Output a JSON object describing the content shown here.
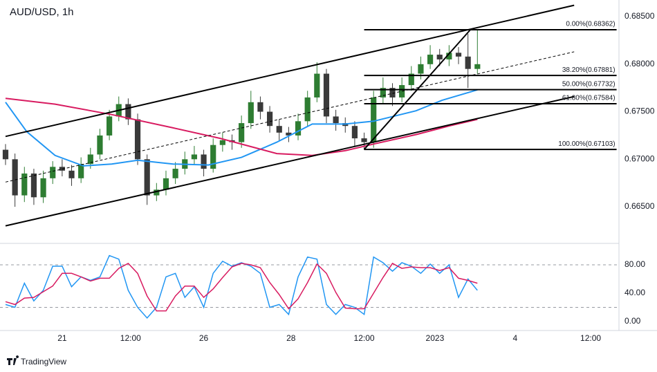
{
  "chart_data": [
    {
      "type": "candlestick",
      "title": "AUD/USD, 1h",
      "xlim": [
        0,
        260
      ],
      "ylim": [
        0.66115,
        0.68675
      ],
      "yticks": [
        {
          "value": 0.665,
          "label": "0.66500"
        },
        {
          "value": 0.67,
          "label": "0.67000"
        },
        {
          "value": 0.675,
          "label": "0.67500"
        },
        {
          "value": 0.68,
          "label": "0.68000"
        },
        {
          "value": 0.685,
          "label": "0.68500"
        }
      ],
      "up_color": "#2e7d32",
      "down_color": "#3a3a3a",
      "x": [
        0,
        4,
        8,
        12,
        16,
        20,
        24,
        28,
        32,
        36,
        40,
        44,
        48,
        52,
        56,
        60,
        64,
        68,
        72,
        76,
        80,
        84,
        88,
        92,
        96,
        100,
        104,
        108,
        112,
        116,
        120,
        124,
        128,
        132,
        136,
        140,
        144,
        148,
        152,
        156,
        160,
        164,
        168,
        172,
        176,
        180,
        184,
        188,
        192,
        196,
        200
      ],
      "open": [
        0.671,
        0.67,
        0.6662,
        0.6685,
        0.666,
        0.668,
        0.6692,
        0.6688,
        0.668,
        0.6695,
        0.6705,
        0.6725,
        0.6745,
        0.6758,
        0.6742,
        0.67,
        0.6662,
        0.6668,
        0.668,
        0.669,
        0.67,
        0.6705,
        0.669,
        0.6715,
        0.672,
        0.6718,
        0.6738,
        0.676,
        0.675,
        0.6735,
        0.6728,
        0.6725,
        0.674,
        0.6765,
        0.679,
        0.6745,
        0.6738,
        0.6735,
        0.6722,
        0.6718,
        0.6765,
        0.6775,
        0.6765,
        0.6778,
        0.679,
        0.68,
        0.681,
        0.6805,
        0.6812,
        0.6808,
        0.6795
      ],
      "high": [
        0.6716,
        0.6706,
        0.6692,
        0.669,
        0.6688,
        0.6698,
        0.67,
        0.6694,
        0.6702,
        0.6712,
        0.6732,
        0.6752,
        0.6766,
        0.6764,
        0.6748,
        0.6705,
        0.6675,
        0.6688,
        0.6697,
        0.6708,
        0.6714,
        0.671,
        0.6722,
        0.6728,
        0.6726,
        0.6746,
        0.6772,
        0.6766,
        0.6756,
        0.6742,
        0.6734,
        0.6748,
        0.6772,
        0.6802,
        0.6795,
        0.6752,
        0.6744,
        0.674,
        0.6728,
        0.6772,
        0.6786,
        0.678,
        0.6786,
        0.6798,
        0.6808,
        0.682,
        0.6816,
        0.682,
        0.6818,
        0.6832,
        0.6836
      ],
      "low": [
        0.6694,
        0.665,
        0.6655,
        0.6652,
        0.6654,
        0.6674,
        0.6682,
        0.6672,
        0.6675,
        0.669,
        0.67,
        0.672,
        0.674,
        0.6736,
        0.6694,
        0.6652,
        0.6656,
        0.6662,
        0.6674,
        0.6684,
        0.6694,
        0.6682,
        0.6686,
        0.6708,
        0.671,
        0.6712,
        0.6732,
        0.6742,
        0.6728,
        0.672,
        0.6718,
        0.672,
        0.6735,
        0.676,
        0.6738,
        0.673,
        0.6728,
        0.6714,
        0.671,
        0.6712,
        0.6758,
        0.6756,
        0.676,
        0.6772,
        0.6784,
        0.6795,
        0.6798,
        0.6798,
        0.68,
        0.6775,
        0.679
      ],
      "close": [
        0.67,
        0.6662,
        0.6685,
        0.666,
        0.668,
        0.6692,
        0.6688,
        0.668,
        0.6695,
        0.6705,
        0.6725,
        0.6745,
        0.6758,
        0.6742,
        0.67,
        0.6662,
        0.6668,
        0.668,
        0.669,
        0.67,
        0.6705,
        0.669,
        0.6715,
        0.672,
        0.6718,
        0.6738,
        0.676,
        0.675,
        0.6735,
        0.6728,
        0.6725,
        0.674,
        0.6765,
        0.679,
        0.6745,
        0.6738,
        0.6735,
        0.6722,
        0.6718,
        0.6765,
        0.6775,
        0.6765,
        0.6778,
        0.679,
        0.68,
        0.681,
        0.6805,
        0.6812,
        0.6808,
        0.6795,
        0.68
      ],
      "series": [
        {
          "color": "#2196f3",
          "x": [
            0,
            9,
            21,
            33,
            45,
            56,
            71,
            86,
            100,
            115,
            130,
            144,
            156,
            174,
            185,
            200
          ],
          "values": [
            0.676,
            0.6729,
            0.6704,
            0.6693,
            0.6695,
            0.6699,
            0.6695,
            0.6694,
            0.6702,
            0.6718,
            0.6737,
            0.6737,
            0.674,
            0.6751,
            0.6762,
            0.6773
          ]
        },
        {
          "color": "#d81b60",
          "x": [
            0,
            21,
            45,
            71,
            91,
            115,
            130,
            144,
            156,
            174,
            188,
            200
          ],
          "values": [
            0.6764,
            0.6758,
            0.6747,
            0.6733,
            0.6722,
            0.6706,
            0.6704,
            0.6709,
            0.6716,
            0.6726,
            0.6735,
            0.6742
          ]
        }
      ],
      "trendlines": [
        {
          "x": [
            0,
            241
          ],
          "values": [
            0.6724,
            0.6862
          ],
          "color": "#000000",
          "dashed": false
        },
        {
          "x": [
            0,
            241
          ],
          "values": [
            0.6676,
            0.6813
          ],
          "color": "#000000",
          "dashed": true
        },
        {
          "x": [
            0,
            241
          ],
          "values": [
            0.663,
            0.6766
          ],
          "color": "#000000",
          "dashed": false
        },
        {
          "x": [
            152,
            197
          ],
          "values": [
            0.67103,
            0.68362
          ],
          "color": "#000000",
          "dashed": false
        }
      ],
      "fib": {
        "x": [
          152,
          259
        ],
        "levels": [
          {
            "value": 0.68362,
            "label": "0.00%(0.68362)"
          },
          {
            "value": 0.67881,
            "label": "38.20%(0.67881)"
          },
          {
            "value": 0.67732,
            "label": "50.00%(0.67732)"
          },
          {
            "value": 0.67584,
            "label": "61.80%(0.67584)"
          },
          {
            "value": 0.67103,
            "label": "100.00%(0.67103)"
          }
        ]
      }
    },
    {
      "type": "line",
      "xlim": [
        0,
        260
      ],
      "ylim": [
        -12.7,
        110.2
      ],
      "yticks": [
        {
          "value": 80,
          "label": "80.00"
        },
        {
          "value": 40,
          "label": "40.00"
        },
        {
          "value": 0,
          "label": "0.00"
        }
      ],
      "levels": [
        80,
        20
      ],
      "xticks": [
        {
          "value": 24,
          "label": "21"
        },
        {
          "value": 53,
          "label": "12:00"
        },
        {
          "value": 84,
          "label": "26"
        },
        {
          "value": 121,
          "label": "28"
        },
        {
          "value": 152,
          "label": "12:00"
        },
        {
          "value": 182,
          "label": "2023"
        },
        {
          "value": 216,
          "label": "4"
        },
        {
          "value": 248,
          "label": "12:00"
        }
      ],
      "series": [
        {
          "color": "#2196f3",
          "x": [
            0,
            4,
            8,
            12,
            16,
            20,
            24,
            28,
            32,
            36,
            40,
            44,
            48,
            52,
            56,
            60,
            64,
            68,
            72,
            76,
            80,
            84,
            88,
            92,
            96,
            100,
            104,
            108,
            112,
            116,
            120,
            124,
            128,
            132,
            136,
            140,
            144,
            148,
            152,
            156,
            160,
            164,
            168,
            172,
            176,
            180,
            184,
            188,
            192,
            196,
            200
          ],
          "values": [
            24,
            20,
            54,
            29,
            44,
            78,
            78,
            49,
            63,
            58,
            63,
            93,
            88,
            44,
            20,
            5,
            20,
            63,
            68,
            34,
            49,
            20,
            68,
            85,
            78,
            83,
            78,
            68,
            20,
            24,
            10,
            63,
            91,
            88,
            24,
            10,
            24,
            20,
            10,
            91,
            83,
            71,
            83,
            78,
            68,
            81,
            68,
            80,
            34,
            60,
            44
          ]
        },
        {
          "color": "#d81b60",
          "x": [
            0,
            4,
            8,
            12,
            16,
            20,
            24,
            28,
            32,
            36,
            40,
            44,
            48,
            52,
            56,
            60,
            64,
            68,
            72,
            76,
            80,
            84,
            88,
            92,
            96,
            100,
            104,
            108,
            112,
            116,
            120,
            124,
            128,
            132,
            136,
            140,
            144,
            148,
            152,
            156,
            160,
            164,
            168,
            172,
            176,
            180,
            184,
            188,
            192,
            196,
            200
          ],
          "values": [
            28,
            24,
            33,
            34,
            42,
            50,
            68,
            68,
            63,
            57,
            61,
            61,
            75,
            82,
            68,
            36,
            15,
            15,
            36,
            50,
            50,
            34,
            46,
            62,
            77,
            82,
            80,
            76,
            55,
            38,
            18,
            32,
            55,
            81,
            68,
            41,
            19,
            18,
            18,
            40,
            62,
            82,
            75,
            77,
            76,
            76,
            72,
            76,
            61,
            58,
            54
          ]
        }
      ]
    }
  ],
  "footer": {
    "brand": "TradingView"
  }
}
